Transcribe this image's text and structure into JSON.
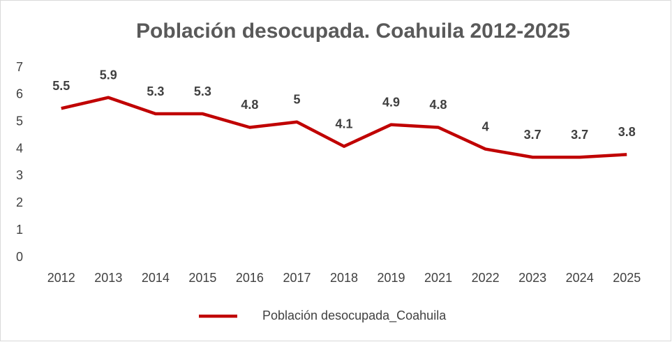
{
  "chart_data": {
    "type": "line",
    "title": "Población desocupada. Coahuila 2012-2025",
    "categories": [
      "2012",
      "2013",
      "2014",
      "2015",
      "2016",
      "2017",
      "2018",
      "2019",
      "2021",
      "2022",
      "2023",
      "2024",
      "2025"
    ],
    "series": [
      {
        "name": "Población desocupada_Coahuila",
        "color": "#c00000",
        "values": [
          5.5,
          5.9,
          5.3,
          5.3,
          4.8,
          5,
          4.1,
          4.9,
          4.8,
          4,
          3.7,
          3.7,
          3.8
        ]
      }
    ],
    "ylim": [
      0,
      7
    ],
    "yticks": [
      0,
      1,
      2,
      3,
      4,
      5,
      6,
      7
    ],
    "grid": false,
    "legend": "bottom"
  }
}
